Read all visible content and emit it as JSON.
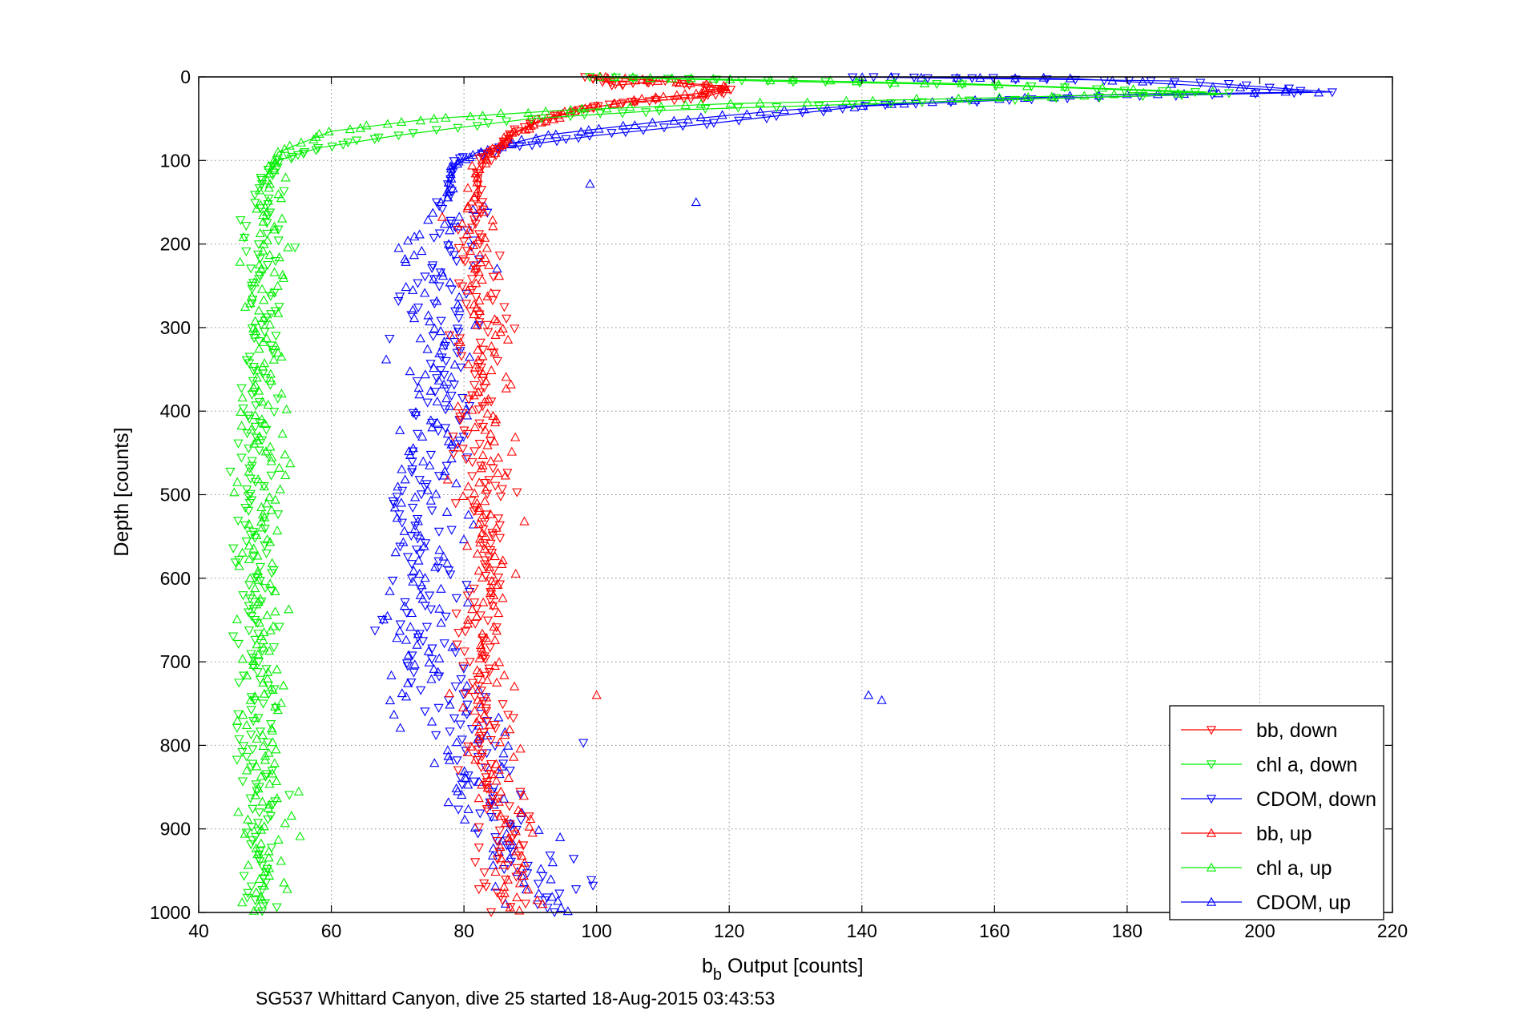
{
  "chart_data": {
    "type": "scatter",
    "title": "",
    "xlabel_main": "b",
    "xlabel_sub": "b",
    "xlabel_rest": " Output [counts]",
    "ylabel": "Depth [counts]",
    "caption": "SG537 Whittard Canyon, dive 25 started 18-Aug-2015 03:43:53",
    "xlim": [
      40,
      220
    ],
    "ylim": [
      0,
      1000
    ],
    "y_reversed": true,
    "grid": true,
    "grid_style": "dotted",
    "legend_position": "lower-right",
    "x_ticks": [
      "40",
      "60",
      "80",
      "100",
      "120",
      "140",
      "160",
      "180",
      "200",
      "220"
    ],
    "y_ticks": [
      "0",
      "100",
      "200",
      "300",
      "400",
      "500",
      "600",
      "700",
      "800",
      "900",
      "1000"
    ],
    "series": [
      {
        "name": "bb, down",
        "color": "#ff0000",
        "marker": "triangle-down",
        "profile": "bb",
        "upper": [
          [
            99,
            0
          ],
          [
            103,
            10
          ],
          [
            110,
            5
          ],
          [
            120,
            15
          ],
          [
            116,
            25
          ],
          [
            105,
            30
          ],
          [
            98,
            38
          ],
          [
            92,
            50
          ],
          [
            88,
            65
          ],
          [
            85,
            85
          ],
          [
            83,
            100
          ],
          [
            82,
            150
          ]
        ],
        "deep_mean": [
          [
            82,
            150
          ],
          [
            82,
            400
          ],
          [
            83,
            600
          ],
          [
            83,
            800
          ],
          [
            86,
            900
          ],
          [
            87,
            1000
          ]
        ],
        "spread": 2.2
      },
      {
        "name": "chl a, down",
        "color": "#00ee00",
        "marker": "triangle-down",
        "profile": "chl",
        "upper": [
          [
            99,
            0
          ],
          [
            125,
            5
          ],
          [
            160,
            10
          ],
          [
            195,
            20
          ],
          [
            150,
            30
          ],
          [
            110,
            40
          ],
          [
            90,
            50
          ],
          [
            70,
            70
          ],
          [
            58,
            85
          ],
          [
            52,
            100
          ],
          [
            50,
            120
          ]
        ],
        "deep_mean": [
          [
            50,
            120
          ],
          [
            49,
            400
          ],
          [
            48,
            600
          ],
          [
            49,
            800
          ],
          [
            49,
            1000
          ]
        ],
        "spread": 1.8
      },
      {
        "name": "CDOM, down",
        "color": "#0000ff",
        "marker": "triangle-down",
        "profile": "cdom",
        "upper": [
          [
            138,
            0
          ],
          [
            160,
            2
          ],
          [
            188,
            5
          ],
          [
            211,
            18
          ],
          [
            170,
            25
          ],
          [
            140,
            35
          ],
          [
            118,
            55
          ],
          [
            100,
            70
          ],
          [
            86,
            85
          ],
          [
            79,
            100
          ],
          [
            77,
            150
          ]
        ],
        "deep_mean": [
          [
            77,
            150
          ],
          [
            77,
            350
          ],
          [
            75,
            500
          ],
          [
            74,
            650
          ],
          [
            78,
            750
          ],
          [
            81,
            800
          ],
          [
            84,
            880
          ],
          [
            92,
            950
          ],
          [
            94,
            1000
          ]
        ],
        "spread": 3.2
      },
      {
        "name": "bb, up",
        "color": "#ff0000",
        "marker": "triangle-up",
        "profile": "bb",
        "upper": [
          [
            100,
            0
          ],
          [
            110,
            5
          ],
          [
            120,
            12
          ],
          [
            115,
            20
          ],
          [
            106,
            28
          ],
          [
            97,
            40
          ],
          [
            91,
            55
          ],
          [
            87,
            70
          ],
          [
            84,
            88
          ],
          [
            82,
            110
          ],
          [
            82,
            150
          ]
        ],
        "deep_mean": [
          [
            82,
            150
          ],
          [
            83,
            400
          ],
          [
            83,
            600
          ],
          [
            84,
            800
          ],
          [
            87,
            900
          ],
          [
            88,
            1000
          ]
        ],
        "spread": 2.2
      },
      {
        "name": "chl a, up",
        "color": "#00ee00",
        "marker": "triangle-up",
        "profile": "chl",
        "upper": [
          [
            100,
            0
          ],
          [
            120,
            3
          ],
          [
            155,
            8
          ],
          [
            192,
            18
          ],
          [
            160,
            25
          ],
          [
            120,
            32
          ],
          [
            95,
            40
          ],
          [
            75,
            50
          ],
          [
            60,
            65
          ],
          [
            52,
            90
          ],
          [
            50,
            120
          ]
        ],
        "deep_mean": [
          [
            50,
            120
          ],
          [
            50,
            400
          ],
          [
            49,
            600
          ],
          [
            50,
            800
          ],
          [
            50,
            1000
          ]
        ],
        "spread": 1.8
      },
      {
        "name": "CDOM, up",
        "color": "#0000ff",
        "marker": "triangle-up",
        "profile": "cdom",
        "upper": [
          [
            140,
            0
          ],
          [
            172,
            2
          ],
          [
            208,
            18
          ],
          [
            175,
            22
          ],
          [
            150,
            30
          ],
          [
            128,
            40
          ],
          [
            108,
            55
          ],
          [
            92,
            70
          ],
          [
            82,
            90
          ],
          [
            78,
            110
          ],
          [
            77,
            150
          ]
        ],
        "deep_mean": [
          [
            77,
            150
          ],
          [
            76,
            350
          ],
          [
            74,
            500
          ],
          [
            73,
            650
          ],
          [
            77,
            750
          ],
          [
            80,
            800
          ],
          [
            83,
            870
          ],
          [
            90,
            940
          ],
          [
            93,
            1000
          ]
        ],
        "spread": 3.4
      }
    ],
    "outliers": [
      {
        "series": "CDOM, up",
        "x": 141,
        "y": 740
      },
      {
        "series": "CDOM, up",
        "x": 143,
        "y": 746
      },
      {
        "series": "CDOM, up",
        "x": 115,
        "y": 150
      },
      {
        "series": "CDOM, up",
        "x": 99,
        "y": 128
      },
      {
        "series": "bb, up",
        "x": 100,
        "y": 740
      },
      {
        "series": "bb, down",
        "x": 88,
        "y": 497
      },
      {
        "series": "CDOM, down",
        "x": 98,
        "y": 797
      }
    ]
  }
}
